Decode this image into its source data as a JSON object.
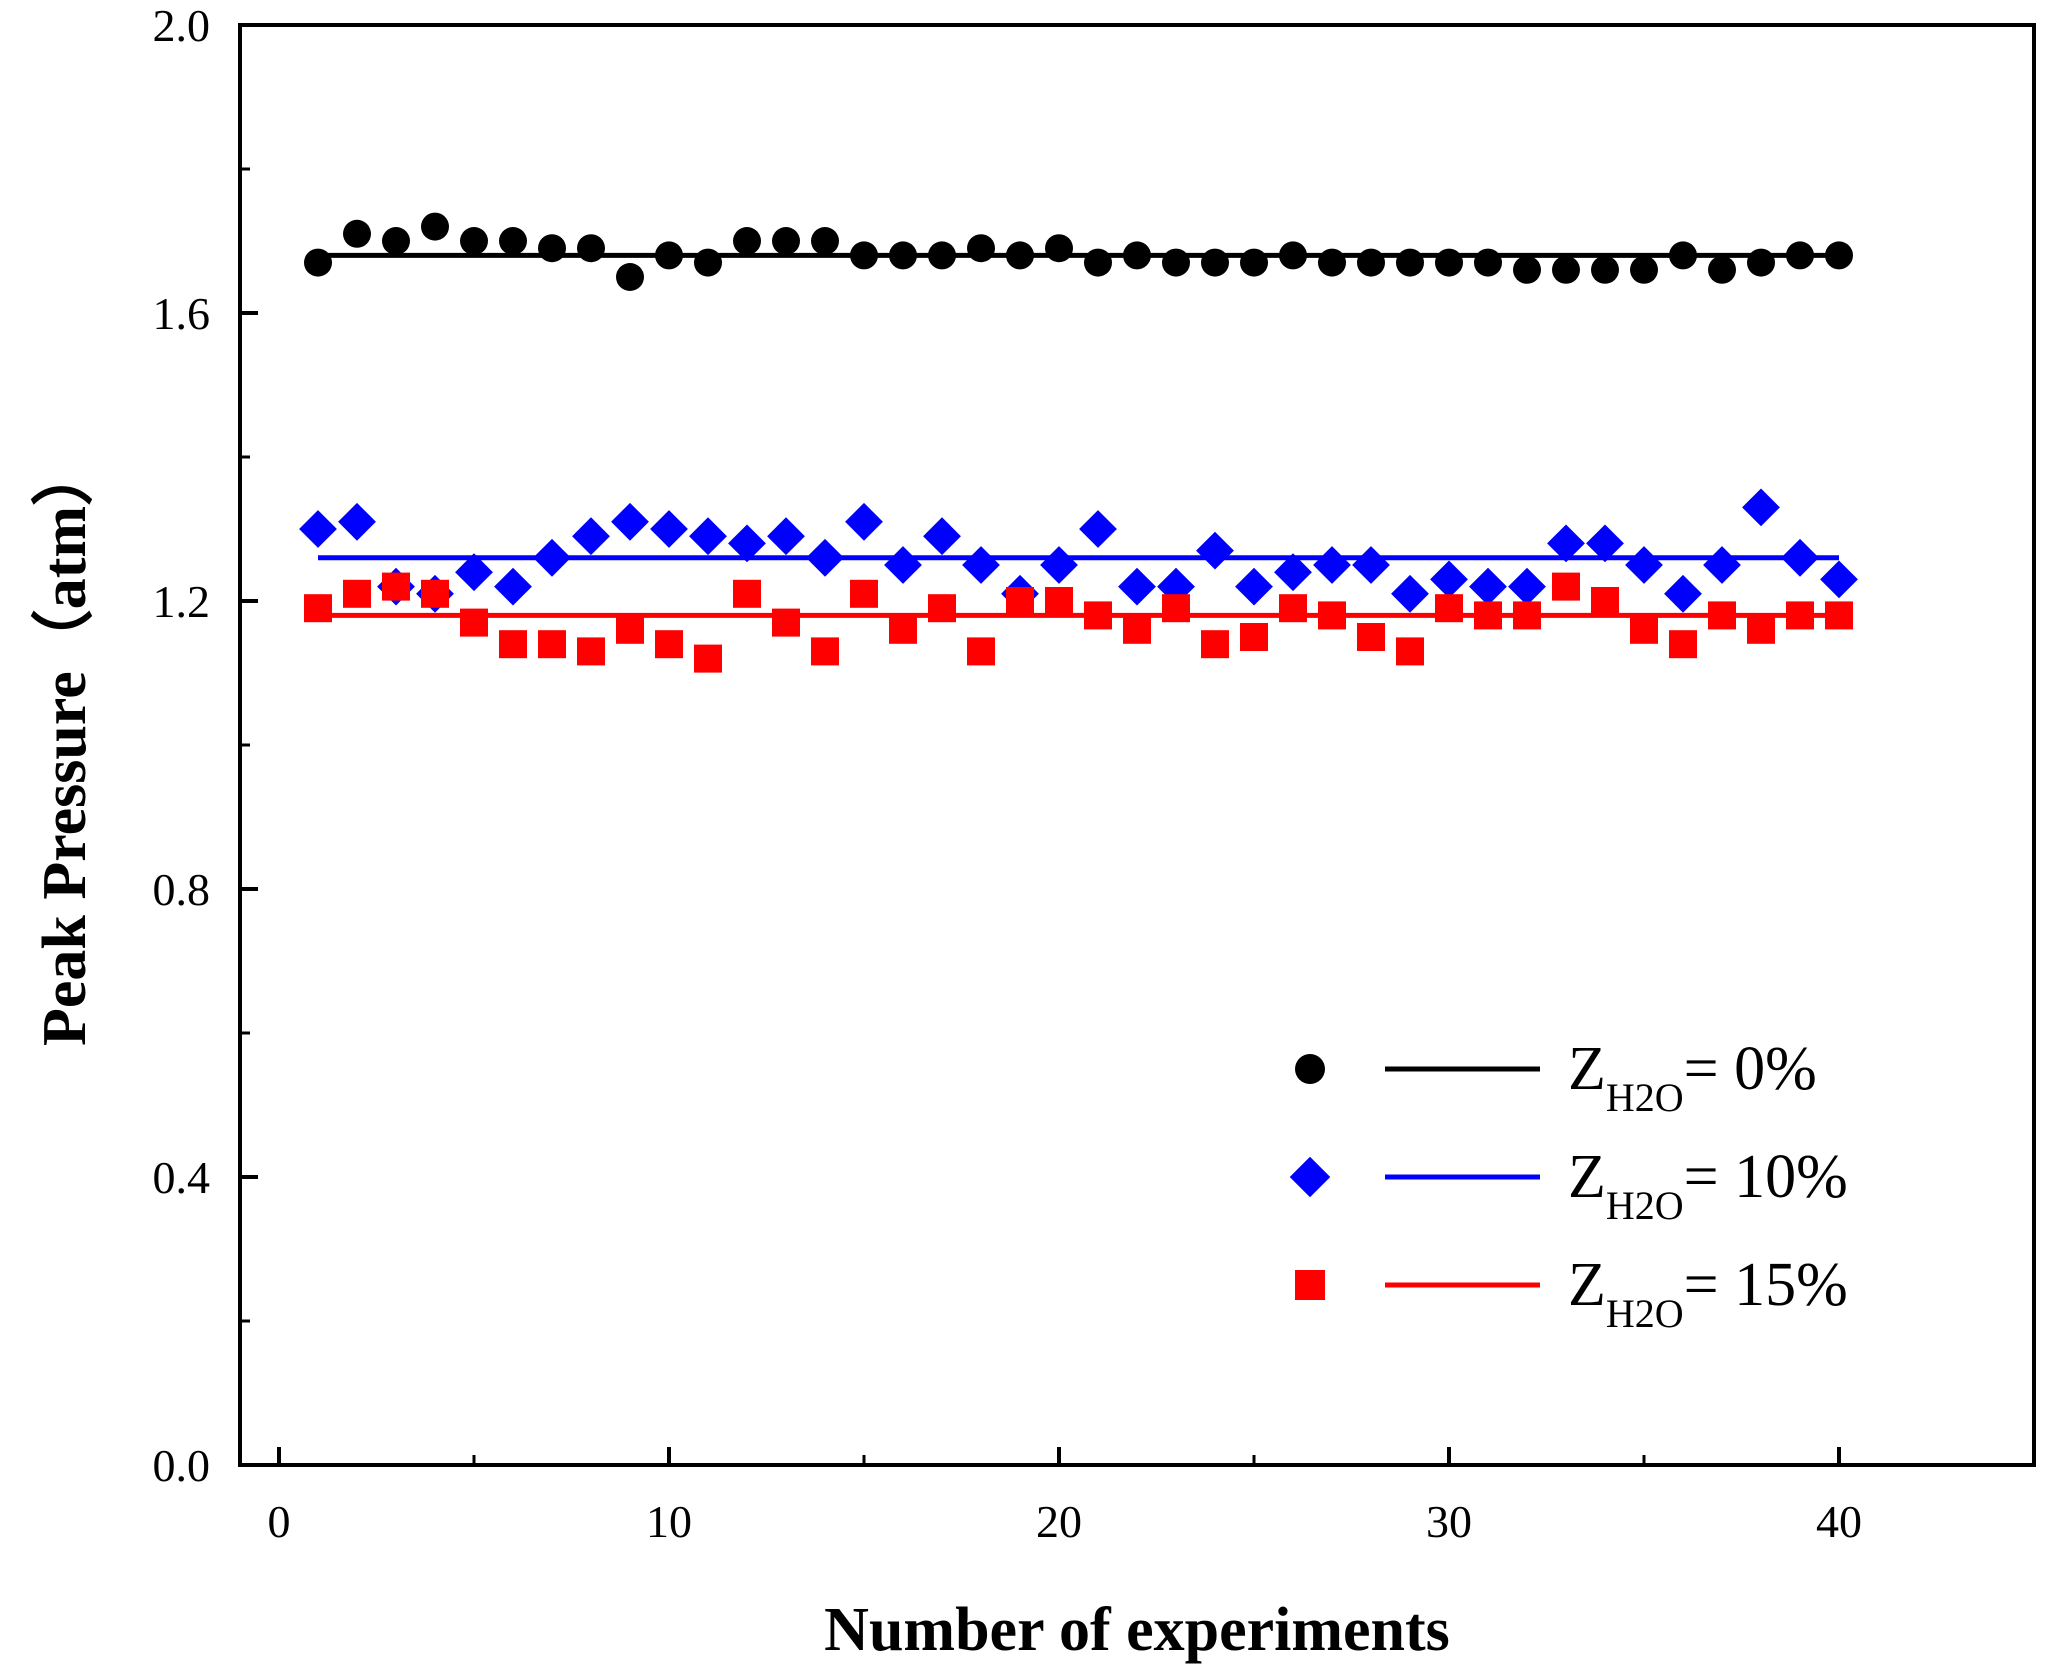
{
  "chart_data": {
    "type": "scatter",
    "title": "",
    "xlabel": "Number of experiments",
    "ylabel": "Peak Pressure（atm）",
    "xlim": [
      -1,
      45
    ],
    "ylim": [
      0,
      2
    ],
    "xticks": [
      0,
      10,
      20,
      30,
      40
    ],
    "yticks": [
      0,
      0.4,
      0.8,
      1.2,
      1.6,
      2.0
    ],
    "ytick_labels": [
      "0.0",
      "0.4",
      "0.8",
      "1.2",
      "1.6",
      "2.0"
    ],
    "xtick_labels": [
      "0",
      "10",
      "20",
      "30",
      "40"
    ],
    "grid": false,
    "legend_position": "bottom-right",
    "series": [
      {
        "legend_main": "Z",
        "legend_sub": "H2O",
        "legend_tail": "= 0%",
        "color": "#000000",
        "marker": "circle",
        "fit_line": {
          "x": [
            1,
            40
          ],
          "y": [
            1.68,
            1.68
          ]
        },
        "x": [
          1,
          2,
          3,
          4,
          5,
          6,
          7,
          8,
          9,
          10,
          11,
          12,
          13,
          14,
          15,
          16,
          17,
          18,
          19,
          20,
          21,
          22,
          23,
          24,
          25,
          26,
          27,
          28,
          29,
          30,
          31,
          32,
          33,
          34,
          35,
          36,
          37,
          38,
          39,
          40
        ],
        "y": [
          1.67,
          1.71,
          1.7,
          1.72,
          1.7,
          1.7,
          1.69,
          1.69,
          1.65,
          1.68,
          1.67,
          1.7,
          1.7,
          1.7,
          1.68,
          1.68,
          1.68,
          1.69,
          1.68,
          1.69,
          1.67,
          1.68,
          1.67,
          1.67,
          1.67,
          1.68,
          1.67,
          1.67,
          1.67,
          1.67,
          1.67,
          1.66,
          1.66,
          1.66,
          1.66,
          1.68,
          1.66,
          1.67,
          1.68,
          1.68
        ]
      },
      {
        "legend_main": "Z",
        "legend_sub": "H2O",
        "legend_tail": "= 10%",
        "color": "#0000ff",
        "marker": "diamond",
        "fit_line": {
          "x": [
            1,
            40
          ],
          "y": [
            1.26,
            1.26
          ]
        },
        "x": [
          1,
          2,
          3,
          4,
          5,
          6,
          7,
          8,
          9,
          10,
          11,
          12,
          13,
          14,
          15,
          16,
          17,
          18,
          19,
          20,
          21,
          22,
          23,
          24,
          25,
          26,
          27,
          28,
          29,
          30,
          31,
          32,
          33,
          34,
          35,
          36,
          37,
          38,
          39,
          40
        ],
        "y": [
          1.3,
          1.31,
          1.22,
          1.21,
          1.24,
          1.22,
          1.26,
          1.29,
          1.31,
          1.3,
          1.29,
          1.28,
          1.29,
          1.26,
          1.31,
          1.25,
          1.29,
          1.25,
          1.21,
          1.25,
          1.3,
          1.22,
          1.22,
          1.27,
          1.22,
          1.24,
          1.25,
          1.25,
          1.21,
          1.23,
          1.22,
          1.22,
          1.28,
          1.28,
          1.25,
          1.21,
          1.25,
          1.33,
          1.26,
          1.23
        ]
      },
      {
        "legend_main": "Z",
        "legend_sub": "H2O",
        "legend_tail": "= 15%",
        "color": "#ff0000",
        "marker": "square",
        "fit_line": {
          "x": [
            1,
            40
          ],
          "y": [
            1.18,
            1.18
          ]
        },
        "x": [
          1,
          2,
          3,
          4,
          5,
          6,
          7,
          8,
          9,
          10,
          11,
          12,
          13,
          14,
          15,
          16,
          17,
          18,
          19,
          20,
          21,
          22,
          23,
          24,
          25,
          26,
          27,
          28,
          29,
          30,
          31,
          32,
          33,
          34,
          35,
          36,
          37,
          38,
          39,
          40
        ],
        "y": [
          1.19,
          1.21,
          1.22,
          1.21,
          1.17,
          1.14,
          1.14,
          1.13,
          1.16,
          1.14,
          1.12,
          1.21,
          1.17,
          1.13,
          1.21,
          1.16,
          1.19,
          1.13,
          1.2,
          1.2,
          1.18,
          1.16,
          1.19,
          1.14,
          1.15,
          1.19,
          1.18,
          1.15,
          1.13,
          1.19,
          1.18,
          1.18,
          1.22,
          1.2,
          1.16,
          1.14,
          1.18,
          1.16,
          1.18,
          1.18
        ]
      }
    ]
  }
}
